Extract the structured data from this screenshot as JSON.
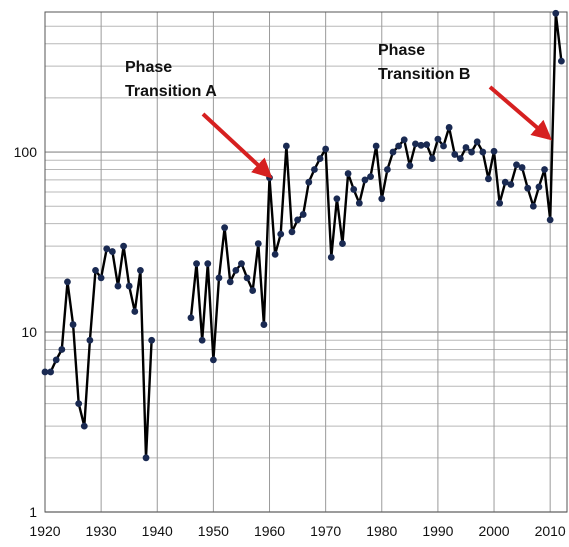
{
  "chart_data": {
    "type": "line",
    "title": "",
    "xlabel": "",
    "ylabel": "",
    "xlim": [
      1920,
      2013
    ],
    "ylim": [
      1,
      600
    ],
    "y_scale": "log",
    "grid": true,
    "line_color": "#000000",
    "marker_color": "#1a2a52",
    "arrow_color": "#d62020",
    "x_ticks": [
      {
        "value": 1920,
        "label": "1920"
      },
      {
        "value": 1930,
        "label": "1930"
      },
      {
        "value": 1940,
        "label": "1940"
      },
      {
        "value": 1950,
        "label": "1950"
      },
      {
        "value": 1960,
        "label": "1960"
      },
      {
        "value": 1970,
        "label": "1970"
      },
      {
        "value": 1980,
        "label": "1980"
      },
      {
        "value": 1990,
        "label": "1990"
      },
      {
        "value": 2000,
        "label": "2000"
      },
      {
        "value": 2010,
        "label": "2010"
      }
    ],
    "y_ticks": [
      {
        "value": 1,
        "label": "1"
      },
      {
        "value": 10,
        "label": "10"
      },
      {
        "value": 100,
        "label": "100"
      }
    ],
    "segments": [
      {
        "x": [
          1920,
          1921,
          1922,
          1923,
          1924,
          1925,
          1926,
          1927,
          1928,
          1929,
          1930,
          1931,
          1932,
          1933,
          1934,
          1935,
          1936,
          1937,
          1938,
          1939
        ],
        "y": [
          6,
          6,
          7,
          8,
          19,
          11,
          4,
          3,
          9,
          22,
          20,
          29,
          28,
          18,
          30,
          18,
          13,
          22,
          2,
          9
        ]
      },
      {
        "x": [
          1946,
          1947,
          1948,
          1949,
          1950,
          1951,
          1952,
          1953,
          1954,
          1955,
          1956,
          1957,
          1958,
          1959,
          1960,
          1961,
          1962,
          1963,
          1964,
          1965,
          1966,
          1967,
          1968,
          1969,
          1970,
          1971,
          1972,
          1973,
          1974,
          1975,
          1976,
          1977,
          1978,
          1979,
          1980,
          1981,
          1982,
          1983,
          1984,
          1985,
          1986,
          1987,
          1988,
          1989,
          1990,
          1991,
          1992,
          1993,
          1994,
          1995,
          1996,
          1997,
          1998,
          1999,
          2000,
          2001,
          2002,
          2003,
          2004,
          2005,
          2006,
          2007,
          2008,
          2009,
          2010,
          2011,
          2012
        ],
        "y": [
          12,
          24,
          9,
          24,
          7,
          20,
          38,
          19,
          22,
          24,
          20,
          17,
          31,
          11,
          72,
          27,
          35,
          108,
          36,
          42,
          45,
          68,
          80,
          92,
          104,
          26,
          55,
          31,
          76,
          62,
          52,
          70,
          73,
          108,
          55,
          80,
          100,
          108,
          117,
          84,
          111,
          109,
          110,
          92,
          118,
          108,
          137,
          97,
          92,
          106,
          100,
          114,
          100,
          71,
          101,
          52,
          68,
          66,
          85,
          82,
          63,
          50,
          64,
          80,
          42,
          590,
          320
        ]
      }
    ],
    "annotations": [
      {
        "line1": "Phase",
        "line2": "Transition A",
        "arrow_to": {
          "x": 1960,
          "y": 72
        }
      },
      {
        "line1": "Phase",
        "line2": "Transition B",
        "arrow_to": {
          "x": 2009.8,
          "y": 120
        }
      }
    ]
  }
}
